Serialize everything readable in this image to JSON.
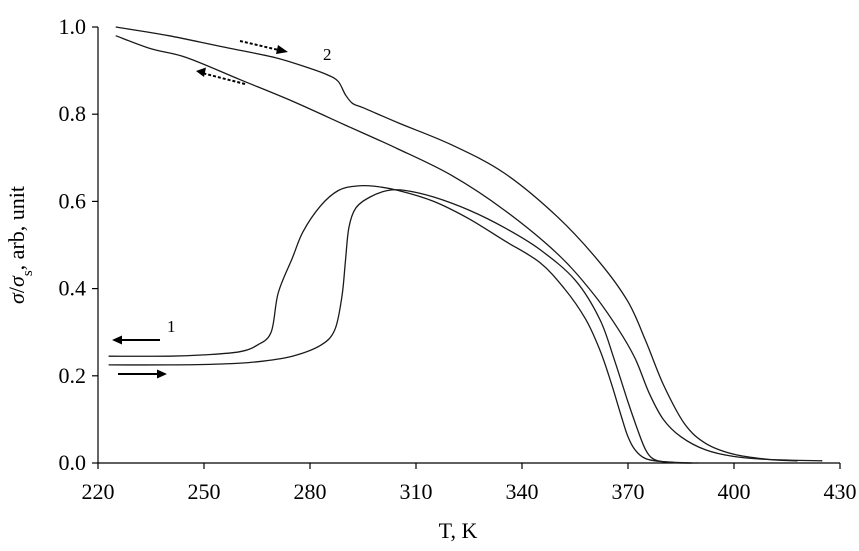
{
  "chart_data": {
    "type": "line",
    "xlabel": "T, K",
    "ylabel": "σ/σs, arb, unit",
    "xlim": [
      220,
      430
    ],
    "ylim": [
      0,
      1.0
    ],
    "x_ticks": [
      220,
      250,
      280,
      310,
      340,
      370,
      400,
      430
    ],
    "y_ticks": [
      "0.0",
      "0.2",
      "0.4",
      "0.6",
      "0.8",
      "1.0"
    ],
    "annotations": [
      {
        "text": "1",
        "x": 237.5,
        "y": 0.305
      },
      {
        "text": "2",
        "x": 283.6,
        "y": 0.945
      }
    ],
    "series": [
      {
        "group": "1",
        "direction": "heating",
        "x": [
          223,
          240,
          255,
          265,
          275,
          283,
          287,
          289,
          290,
          291,
          293,
          297,
          302,
          307,
          315,
          325,
          335,
          345,
          355,
          362,
          366,
          370,
          373,
          375,
          377,
          380,
          385,
          390
        ],
        "y": [
          0.225,
          0.225,
          0.227,
          0.232,
          0.245,
          0.27,
          0.305,
          0.38,
          0.46,
          0.54,
          0.585,
          0.61,
          0.625,
          0.625,
          0.61,
          0.58,
          0.54,
          0.49,
          0.42,
          0.33,
          0.24,
          0.14,
          0.07,
          0.03,
          0.01,
          0.003,
          0.0,
          0.0
        ]
      },
      {
        "group": "1",
        "direction": "cooling",
        "x": [
          388,
          380,
          375,
          372,
          370,
          368,
          365,
          362,
          358,
          352,
          345,
          335,
          325,
          315,
          305,
          298,
          293,
          288,
          283,
          278,
          275,
          271,
          269,
          265,
          260,
          250,
          240,
          223
        ],
        "y": [
          0.0,
          0.003,
          0.01,
          0.03,
          0.06,
          0.11,
          0.19,
          0.26,
          0.33,
          0.4,
          0.46,
          0.51,
          0.56,
          0.6,
          0.625,
          0.635,
          0.635,
          0.625,
          0.59,
          0.53,
          0.47,
          0.39,
          0.3,
          0.27,
          0.255,
          0.248,
          0.245,
          0.245
        ]
      },
      {
        "group": "2",
        "direction": "heating",
        "x": [
          225,
          240,
          255,
          270,
          280,
          285,
          288,
          290,
          292,
          295,
          305,
          320,
          335,
          350,
          362,
          370,
          375,
          380,
          386,
          392,
          400,
          410,
          418
        ],
        "y": [
          1.0,
          0.98,
          0.955,
          0.93,
          0.905,
          0.89,
          0.875,
          0.845,
          0.825,
          0.815,
          0.78,
          0.73,
          0.665,
          0.565,
          0.46,
          0.37,
          0.28,
          0.18,
          0.09,
          0.045,
          0.02,
          0.008,
          0.005
        ]
      },
      {
        "group": "2",
        "direction": "cooling",
        "x": [
          425,
          410,
          400,
          392,
          385,
          380,
          376,
          372,
          367,
          360,
          350,
          335,
          320,
          305,
          290,
          275,
          260,
          245,
          235,
          225
        ],
        "y": [
          0.005,
          0.008,
          0.015,
          0.03,
          0.06,
          0.1,
          0.16,
          0.24,
          0.31,
          0.39,
          0.48,
          0.58,
          0.66,
          0.72,
          0.775,
          0.83,
          0.88,
          0.93,
          0.95,
          0.98
        ]
      }
    ]
  }
}
